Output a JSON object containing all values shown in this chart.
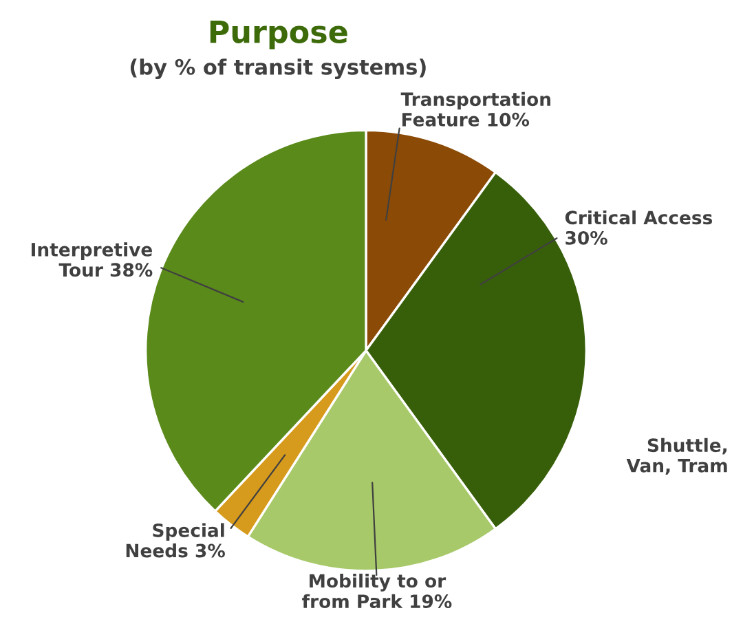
{
  "chart_data": {
    "type": "pie",
    "title": "Purpose",
    "subtitle": "(by % of transit systems)",
    "categories": [
      "Transportation\nFeature",
      "Critical Access",
      "Mobility to or\nfrom Park",
      "Special\nNeeds",
      "Interpretive\nTour"
    ],
    "values": [
      10,
      30,
      19,
      3,
      38
    ],
    "value_labels": [
      "10%",
      "30%",
      "19%",
      "3%",
      "38%"
    ],
    "colors": [
      "#8b4a06",
      "#375f0a",
      "#a8c96a",
      "#d69a1c",
      "#5a8a1a"
    ],
    "annotations": [
      "Shuttle,\nVan, Tram"
    ],
    "legend": false
  }
}
